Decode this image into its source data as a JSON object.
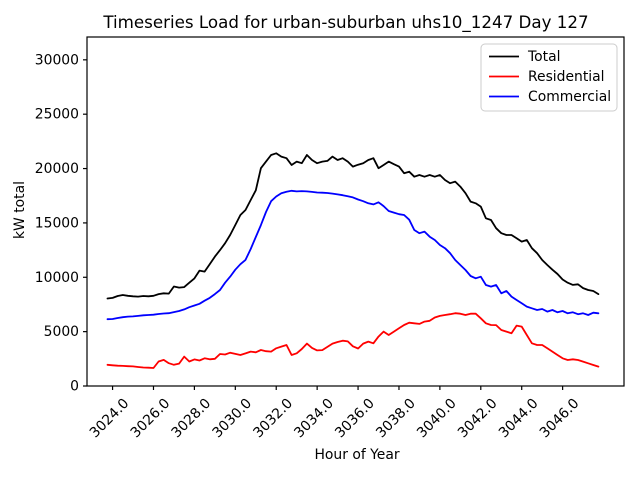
{
  "figure": {
    "title": "Timeseries Load for urban-suburban uhs10_1247  Day 127",
    "xlabel": "Hour of Year",
    "ylabel": "kW total"
  },
  "legend": {
    "position": "upper right",
    "entries": [
      "Total",
      "Residential",
      "Commercial"
    ]
  },
  "chart_data": {
    "type": "line",
    "title": "Timeseries Load for urban-suburban uhs10_1247  Day 127",
    "xlabel": "Hour of Year",
    "ylabel": "kW total",
    "grid": false,
    "legend_position": "upper right",
    "xlim": [
      3022.75,
      3049.0
    ],
    "ylim": [
      0,
      32100
    ],
    "x_ticks": [
      3024,
      3026,
      3028,
      3030,
      3032,
      3034,
      3036,
      3038,
      3040,
      3042,
      3044,
      3046
    ],
    "x_tick_labels": [
      "3024.0",
      "3026.0",
      "3028.0",
      "3030.0",
      "3032.0",
      "3034.0",
      "3036.0",
      "3038.0",
      "3040.0",
      "3042.0",
      "3044.0",
      "3046.0"
    ],
    "y_ticks": [
      0,
      5000,
      10000,
      15000,
      20000,
      25000,
      30000
    ],
    "y_tick_labels": [
      "0",
      "5000",
      "10000",
      "15000",
      "20000",
      "25000",
      "30000"
    ],
    "x": [
      3023.75,
      3024,
      3024.25,
      3024.5,
      3024.75,
      3025,
      3025.25,
      3025.5,
      3025.75,
      3026,
      3026.25,
      3026.5,
      3026.75,
      3027,
      3027.25,
      3027.5,
      3027.75,
      3028,
      3028.25,
      3028.5,
      3028.75,
      3029,
      3029.25,
      3029.5,
      3029.75,
      3030,
      3030.25,
      3030.5,
      3030.75,
      3031,
      3031.25,
      3031.5,
      3031.75,
      3032,
      3032.25,
      3032.5,
      3032.75,
      3033,
      3033.25,
      3033.5,
      3033.75,
      3034,
      3034.25,
      3034.5,
      3034.75,
      3035,
      3035.25,
      3035.5,
      3035.75,
      3036,
      3036.25,
      3036.5,
      3036.75,
      3037,
      3037.25,
      3037.5,
      3037.75,
      3038,
      3038.25,
      3038.5,
      3038.75,
      3039,
      3039.25,
      3039.5,
      3039.75,
      3040,
      3040.25,
      3040.5,
      3040.75,
      3041,
      3041.25,
      3041.5,
      3041.75,
      3042,
      3042.25,
      3042.5,
      3042.75,
      3043,
      3043.25,
      3043.5,
      3043.75,
      3044,
      3044.25,
      3044.5,
      3044.75,
      3045,
      3045.25,
      3045.5,
      3045.75,
      3046,
      3046.25,
      3046.5,
      3046.75,
      3047,
      3047.25,
      3047.5,
      3047.75
    ],
    "series": [
      {
        "name": "Total",
        "color": "#000000",
        "values": [
          8050,
          8100,
          8280,
          8370,
          8300,
          8250,
          8220,
          8280,
          8250,
          8300,
          8450,
          8530,
          8500,
          9150,
          9050,
          9100,
          9500,
          9900,
          10610,
          10520,
          11200,
          11900,
          12500,
          13130,
          13900,
          14810,
          15730,
          16190,
          17110,
          18000,
          20030,
          20640,
          21250,
          21400,
          21100,
          20950,
          20330,
          20640,
          20490,
          21250,
          20790,
          20490,
          20640,
          20700,
          21100,
          20790,
          20950,
          20640,
          20180,
          20350,
          20490,
          20790,
          20950,
          20030,
          20330,
          20640,
          20400,
          20180,
          19570,
          19710,
          19250,
          19410,
          19250,
          19410,
          19250,
          19410,
          18950,
          18650,
          18800,
          18340,
          17730,
          16960,
          16800,
          16500,
          15420,
          15270,
          14510,
          14050,
          13890,
          13890,
          13590,
          13280,
          13430,
          12670,
          12210,
          11590,
          11130,
          10700,
          10300,
          9800,
          9500,
          9300,
          9350,
          9000,
          8830,
          8740,
          8450
        ]
      },
      {
        "name": "Residential",
        "color": "#ff0000",
        "values": [
          1950,
          1900,
          1870,
          1850,
          1820,
          1800,
          1750,
          1700,
          1680,
          1660,
          2250,
          2400,
          2100,
          1950,
          2060,
          2700,
          2250,
          2450,
          2350,
          2550,
          2460,
          2500,
          2940,
          2900,
          3060,
          2950,
          2850,
          3000,
          3160,
          3100,
          3310,
          3200,
          3160,
          3470,
          3620,
          3770,
          2850,
          3010,
          3400,
          3900,
          3500,
          3270,
          3300,
          3600,
          3900,
          4050,
          4170,
          4100,
          3650,
          3450,
          3900,
          4080,
          3930,
          4540,
          5000,
          4690,
          5000,
          5310,
          5610,
          5820,
          5770,
          5710,
          5920,
          6000,
          6300,
          6450,
          6530,
          6600,
          6700,
          6650,
          6530,
          6650,
          6650,
          6230,
          5770,
          5610,
          5600,
          5150,
          5000,
          4850,
          5560,
          5460,
          4690,
          3930,
          3770,
          3770,
          3470,
          3160,
          2850,
          2550,
          2390,
          2460,
          2390,
          2240,
          2090,
          1930,
          1780
        ]
      },
      {
        "name": "Commercial",
        "color": "#0000ff",
        "values": [
          6140,
          6160,
          6250,
          6330,
          6380,
          6400,
          6450,
          6500,
          6530,
          6560,
          6620,
          6670,
          6700,
          6800,
          6900,
          7050,
          7250,
          7400,
          7560,
          7850,
          8100,
          8450,
          8830,
          9500,
          10060,
          10700,
          11200,
          11600,
          12600,
          13700,
          14800,
          16000,
          17000,
          17430,
          17730,
          17870,
          17950,
          17900,
          17930,
          17900,
          17850,
          17800,
          17780,
          17750,
          17700,
          17620,
          17550,
          17450,
          17350,
          17150,
          17000,
          16800,
          16700,
          16900,
          16550,
          16100,
          15950,
          15800,
          15730,
          15300,
          14350,
          14050,
          14200,
          13730,
          13430,
          12970,
          12670,
          12210,
          11590,
          11130,
          10670,
          10120,
          9910,
          10050,
          9290,
          9140,
          9290,
          8530,
          8740,
          8220,
          7910,
          7610,
          7300,
          7150,
          6990,
          7080,
          6840,
          6990,
          6780,
          6900,
          6690,
          6780,
          6600,
          6690,
          6530,
          6740,
          6690
        ]
      }
    ]
  }
}
